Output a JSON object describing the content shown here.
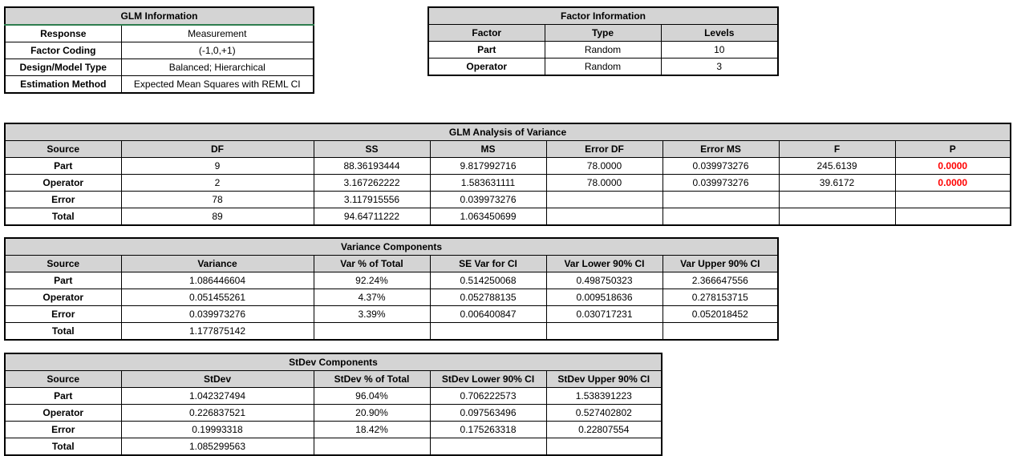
{
  "glm_info": {
    "title": "GLM Information",
    "rows": [
      {
        "label": "Response",
        "value": "Measurement"
      },
      {
        "label": "Factor Coding",
        "value": "(-1,0,+1)"
      },
      {
        "label": "Design/Model Type",
        "value": "Balanced; Hierarchical"
      },
      {
        "label": "Estimation Method",
        "value": "Expected Mean Squares with REML CI"
      }
    ]
  },
  "factor_info": {
    "title": "Factor Information",
    "headers": [
      "Factor",
      "Type",
      "Levels"
    ],
    "rows": [
      [
        "Part",
        "Random",
        "10"
      ],
      [
        "Operator",
        "Random",
        "3"
      ]
    ]
  },
  "anova": {
    "title": "GLM Analysis of Variance",
    "headers": [
      "Source",
      "DF",
      "SS",
      "MS",
      "Error DF",
      "Error MS",
      "F",
      "P"
    ],
    "rows": [
      [
        "Part",
        "9",
        "88.36193444",
        "9.817992716",
        "78.0000",
        "0.039973276",
        "245.6139",
        "0.0000"
      ],
      [
        "Operator",
        "2",
        "3.167262222",
        "1.583631111",
        "78.0000",
        "0.039973276",
        "39.6172",
        "0.0000"
      ],
      [
        "Error",
        "78",
        "3.117915556",
        "0.039973276",
        "",
        "",
        "",
        ""
      ],
      [
        "Total",
        "89",
        "94.64711222",
        "1.063450699",
        "",
        "",
        "",
        ""
      ]
    ],
    "highlight_color": "#ff0000"
  },
  "variance_components": {
    "title": "Variance Components",
    "headers": [
      "Source",
      "Variance",
      "Var % of Total",
      "SE Var for CI",
      "Var Lower 90% CI",
      "Var Upper 90% CI"
    ],
    "rows": [
      [
        "Part",
        "1.086446604",
        "92.24%",
        "0.514250068",
        "0.498750323",
        "2.366647556"
      ],
      [
        "Operator",
        "0.051455261",
        "4.37%",
        "0.052788135",
        "0.009518636",
        "0.278153715"
      ],
      [
        "Error",
        "0.039973276",
        "3.39%",
        "0.006400847",
        "0.030717231",
        "0.052018452"
      ],
      [
        "Total",
        "1.177875142",
        "",
        "",
        "",
        ""
      ]
    ]
  },
  "stdev_components": {
    "title": "StDev Components",
    "headers": [
      "Source",
      "StDev",
      "StDev % of Total",
      "StDev Lower 90% CI",
      "StDev Upper 90% CI"
    ],
    "rows": [
      [
        "Part",
        "1.042327494",
        "96.04%",
        "0.706222573",
        "1.538391223"
      ],
      [
        "Operator",
        "0.226837521",
        "20.90%",
        "0.097563496",
        "0.527402802"
      ],
      [
        "Error",
        "0.19993318",
        "18.42%",
        "0.175263318",
        "0.22807554"
      ],
      [
        "Total",
        "1.085299563",
        "",
        "",
        ""
      ]
    ]
  },
  "colors": {
    "header_fill": "#d4d4d4",
    "selection_border": "#2e7d4f",
    "significant_p": "#ff0000"
  }
}
